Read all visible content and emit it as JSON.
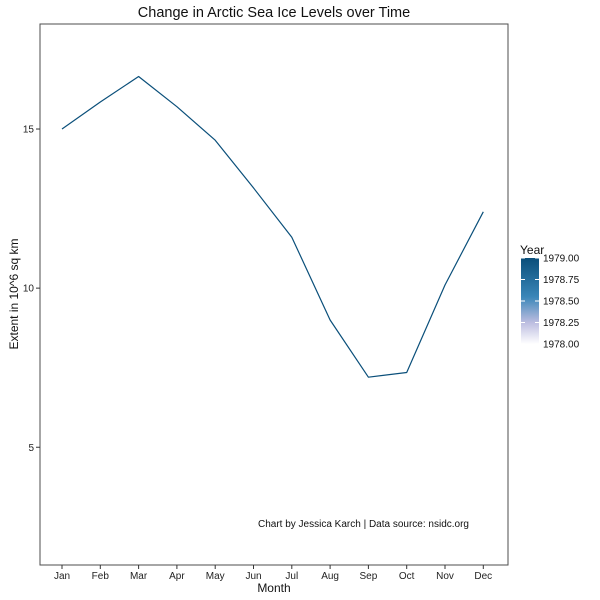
{
  "chart_data": {
    "type": "line",
    "title": "Change in Arctic Sea Ice Levels over Time",
    "xlabel": "Month",
    "ylabel": "Extent in 10^6 sq km",
    "categories": [
      "Jan",
      "Feb",
      "Mar",
      "Apr",
      "May",
      "Jun",
      "Jul",
      "Aug",
      "Sep",
      "Oct",
      "Nov",
      "Dec"
    ],
    "series": [
      {
        "year": 1979,
        "values": [
          15.0,
          15.85,
          16.65,
          15.7,
          14.65,
          13.15,
          11.6,
          9.0,
          7.2,
          7.35,
          10.1,
          12.4
        ],
        "color": "#0a4f7a"
      }
    ],
    "y_ticks": [
      5,
      10,
      15
    ],
    "y_tick_labels": [
      "5",
      "10",
      "15"
    ],
    "ylim": [
      1.3,
      18.3
    ],
    "grid": false,
    "caption": "Chart by Jessica Karch | Data source: nsidc.org",
    "legend": {
      "title": "Year",
      "placement": "right",
      "labels": [
        "1979.00",
        "1978.75",
        "1978.50",
        "1978.25",
        "1978.00"
      ],
      "gradient_colors": [
        "#0a4f7a",
        "#ffffff"
      ]
    }
  }
}
